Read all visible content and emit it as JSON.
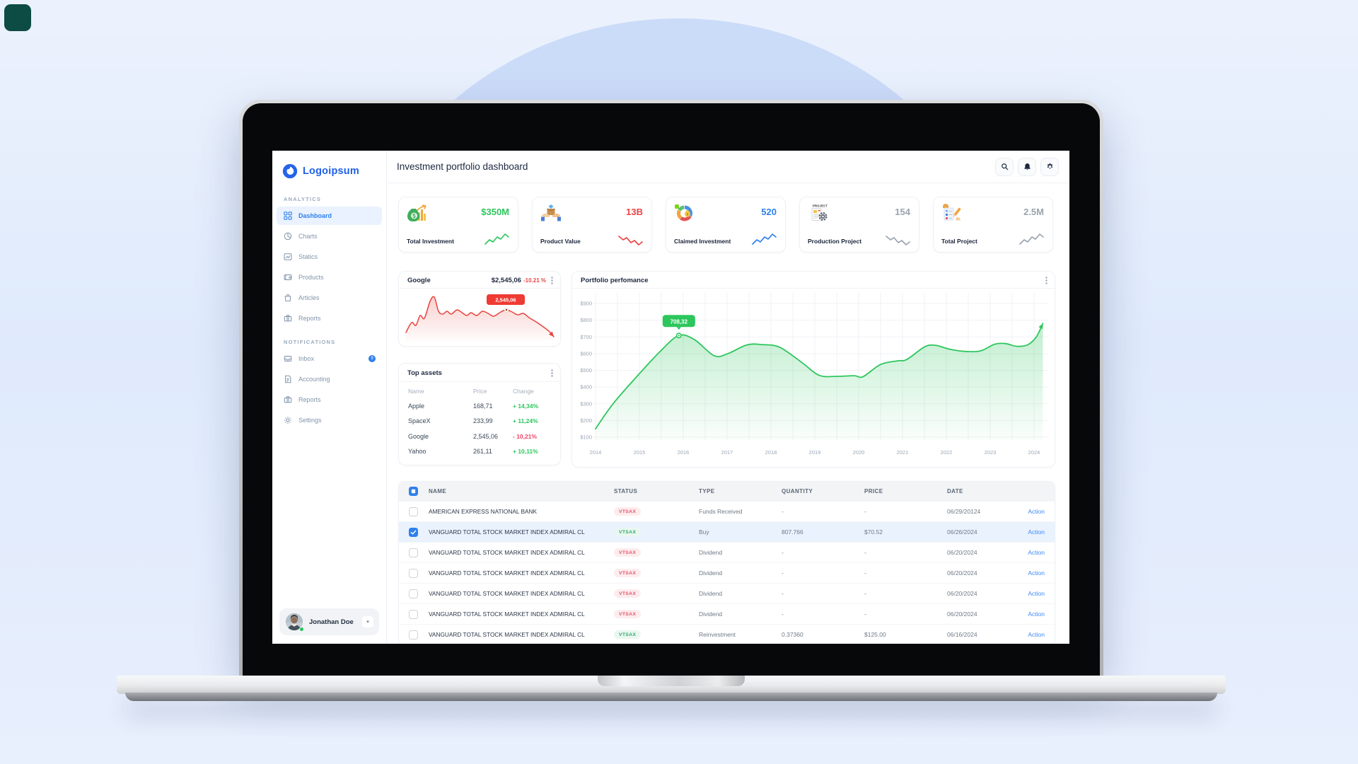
{
  "decor": {
    "corner_color": "#0d4b45",
    "circle_color": "#cbdcf9"
  },
  "colors": {
    "accent_blue": "#2f80ed",
    "green": "#2dc65d",
    "red": "#ef4444",
    "chart_red": "#e8433c",
    "action_link": "#3d8af7",
    "badge_red_text": "#e4566b",
    "badge_green_text": "#34a86d"
  },
  "sidebar": {
    "logo": {
      "text": "Logoipsum"
    },
    "sections": [
      {
        "label": "ANALYTICS",
        "items": [
          {
            "label": "Dashboard",
            "icon": "dashboard-grid-icon",
            "active": true
          },
          {
            "label": "Charts",
            "icon": "pie-chart-icon",
            "active": false
          },
          {
            "label": "Statics",
            "icon": "stats-image-icon",
            "active": false
          },
          {
            "label": "Products",
            "icon": "wallet-icon",
            "active": false
          },
          {
            "label": "Articles",
            "icon": "shopping-bag-icon",
            "active": false
          },
          {
            "label": "Reports",
            "icon": "briefcase-icon",
            "active": false
          }
        ]
      },
      {
        "label": "NOTIFICATIONS",
        "items": [
          {
            "label": "Inbox",
            "icon": "inbox-icon",
            "active": false,
            "badge": "9"
          },
          {
            "label": "Accounting",
            "icon": "document-icon",
            "active": false
          },
          {
            "label": "Reports",
            "icon": "briefcase-icon",
            "active": false
          },
          {
            "label": "Settings",
            "icon": "gear-icon",
            "active": false
          }
        ]
      }
    ],
    "profile": {
      "name": "Jonathan Doe",
      "status": "online"
    }
  },
  "header": {
    "title": "Investment portfolio dashboard",
    "actions": [
      "search-icon",
      "bell-icon",
      "gear-icon"
    ]
  },
  "stat_cards": [
    {
      "label": "Total Investment",
      "value": "$350M",
      "value_color": "#2dc65d",
      "icon": "money-bag-icon",
      "trend": "up",
      "trend_color": "#2dc65d"
    },
    {
      "label": "Product Value",
      "value": "13B",
      "value_color": "#ef4444",
      "icon": "hands-box-icon",
      "trend": "down",
      "trend_color": "#ef4444"
    },
    {
      "label": "Claimed Investment",
      "value": "520",
      "value_color": "#2f80ed",
      "icon": "donut-chart-icon",
      "trend": "up",
      "trend_color": "#2f80ed"
    },
    {
      "label": "Production Project",
      "value": "154",
      "value_color": "#9aa3af",
      "icon": "project-document-icon",
      "trend": "down",
      "trend_color": "#9aa3af"
    },
    {
      "label": "Total Project",
      "value": "2.5M",
      "value_color": "#9aa3af",
      "icon": "task-list-icon",
      "trend": "up",
      "trend_color": "#9aa3af"
    }
  ],
  "google_card": {
    "title": "Google",
    "price": "$2,545,06",
    "change": "-10.21 %",
    "tooltip": "2,545,06"
  },
  "top_assets": {
    "title": "Top assets",
    "columns": [
      "Name",
      "Price",
      "Change"
    ],
    "rows": [
      {
        "name": "Apple",
        "price": "168,71",
        "change": "+ 14,34%",
        "direction": "up"
      },
      {
        "name": "SpaceX",
        "price": "233,99",
        "change": "+ 11,24%",
        "direction": "up"
      },
      {
        "name": "Google",
        "price": "2,545,06",
        "change": "- 10,21%",
        "direction": "down"
      },
      {
        "name": "Yahoo",
        "price": "261,11",
        "change": "+ 10,11%",
        "direction": "up"
      }
    ]
  },
  "portfolio_card": {
    "title": "Portfolio perfomance"
  },
  "chart_data": [
    {
      "type": "area",
      "name": "portfolio-performance",
      "title": "Portfolio perfomance",
      "x_ticks": [
        "2014",
        "2015",
        "2016",
        "2017",
        "2018",
        "2019",
        "2020",
        "2021",
        "2022",
        "2023",
        "2024"
      ],
      "y_ticks": [
        "$900",
        "$800",
        "$700",
        "$600",
        "$500",
        "$400",
        "$300",
        "$200",
        "$100"
      ],
      "ylim": [
        100,
        900
      ],
      "grid": true,
      "legend": false,
      "line_color": "#2dc65d",
      "points": [
        [
          2014,
          150
        ],
        [
          2014.4,
          300
        ],
        [
          2015,
          480
        ],
        [
          2015.5,
          620
        ],
        [
          2015.9,
          708.32
        ],
        [
          2016.25,
          685
        ],
        [
          2016.7,
          588
        ],
        [
          2017,
          598
        ],
        [
          2017.45,
          652
        ],
        [
          2017.8,
          654
        ],
        [
          2018.2,
          638
        ],
        [
          2018.7,
          548
        ],
        [
          2019.1,
          470
        ],
        [
          2019.5,
          464
        ],
        [
          2019.9,
          468
        ],
        [
          2020.1,
          462
        ],
        [
          2020.5,
          535
        ],
        [
          2020.9,
          557
        ],
        [
          2021.1,
          565
        ],
        [
          2021.5,
          640
        ],
        [
          2021.75,
          650
        ],
        [
          2022.1,
          625
        ],
        [
          2022.5,
          612
        ],
        [
          2022.8,
          618
        ],
        [
          2023.1,
          656
        ],
        [
          2023.35,
          660
        ],
        [
          2023.6,
          644
        ],
        [
          2023.85,
          652
        ],
        [
          2024.05,
          700
        ],
        [
          2024.2,
          780
        ]
      ],
      "annotation": {
        "index": 4,
        "label": "708,32"
      }
    },
    {
      "type": "area",
      "name": "google-stock-sparkline",
      "title": "Google",
      "line_color": "#e8433c",
      "units": "relative-px",
      "points": [
        [
          2,
          60
        ],
        [
          10,
          46
        ],
        [
          16,
          50
        ],
        [
          22,
          36
        ],
        [
          28,
          40
        ],
        [
          36,
          16
        ],
        [
          42,
          10
        ],
        [
          48,
          30
        ],
        [
          54,
          34
        ],
        [
          60,
          30
        ],
        [
          66,
          34
        ],
        [
          74,
          28
        ],
        [
          80,
          31
        ],
        [
          88,
          36
        ],
        [
          94,
          32
        ],
        [
          102,
          36
        ],
        [
          110,
          30
        ],
        [
          118,
          33
        ],
        [
          126,
          37
        ],
        [
          136,
          31
        ],
        [
          144,
          28
        ],
        [
          152,
          31
        ],
        [
          160,
          35
        ],
        [
          168,
          33
        ],
        [
          176,
          39
        ],
        [
          186,
          45
        ],
        [
          196,
          52
        ],
        [
          204,
          58
        ],
        [
          211,
          66
        ]
      ],
      "annotation": {
        "index": 20,
        "label": "2,545,06"
      }
    }
  ],
  "table": {
    "columns": [
      "NAME",
      "STATUS",
      "TYPE",
      "QUANTITY",
      "PRICE",
      "DATE"
    ],
    "action_label": "Action",
    "rows": [
      {
        "name": "AMERICAN EXPRESS NATIONAL BANK",
        "status": "VTSAX",
        "status_color": "red",
        "type": "Funds Received",
        "quantity": "-",
        "price": "-",
        "date": "06/29/20124",
        "checked": false,
        "selected": false
      },
      {
        "name": "VANGUARD TOTAL STOCK MARKET INDEX ADMIRAL CL",
        "status": "VTSAX",
        "status_color": "green",
        "type": "Buy",
        "quantity": "807.766",
        "price": "$70.52",
        "date": "06/26/2024",
        "checked": true,
        "selected": true
      },
      {
        "name": "VANGUARD TOTAL STOCK MARKET INDEX ADMIRAL CL",
        "status": "VTSAX",
        "status_color": "red",
        "type": "Dividend",
        "quantity": "-",
        "price": "-",
        "date": "06/20/2024",
        "checked": false,
        "selected": false
      },
      {
        "name": "VANGUARD TOTAL STOCK MARKET INDEX ADMIRAL CL",
        "status": "VTSAX",
        "status_color": "red",
        "type": "Dividend",
        "quantity": "-",
        "price": "-",
        "date": "06/20/2024",
        "checked": false,
        "selected": false
      },
      {
        "name": "VANGUARD TOTAL STOCK MARKET INDEX ADMIRAL CL",
        "status": "VTSAX",
        "status_color": "red",
        "type": "Dividend",
        "quantity": "-",
        "price": "-",
        "date": "06/20/2024",
        "checked": false,
        "selected": false
      },
      {
        "name": "VANGUARD TOTAL STOCK MARKET INDEX ADMIRAL CL",
        "status": "VTSAX",
        "status_color": "red",
        "type": "Dividend",
        "quantity": "-",
        "price": "-",
        "date": "06/20/2024",
        "checked": false,
        "selected": false
      },
      {
        "name": "VANGUARD TOTAL STOCK MARKET INDEX ADMIRAL CL",
        "status": "VTSAX",
        "status_color": "green",
        "type": "Reinvestment",
        "quantity": "0.37360",
        "price": "$125.00",
        "date": "06/16/2024",
        "checked": false,
        "selected": false
      }
    ]
  }
}
